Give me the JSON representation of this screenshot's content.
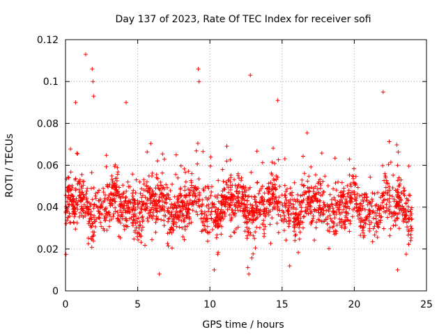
{
  "chart_data": {
    "type": "scatter",
    "title": "Day 137 of 2023, Rate Of TEC Index for receiver sofi",
    "xlabel": "GPS time / hours",
    "ylabel": "ROTI / TECUs",
    "xlim": [
      0,
      25
    ],
    "ylim": [
      0,
      0.12
    ],
    "x_ticks": [
      "0",
      "5",
      "10",
      "15",
      "20",
      "25"
    ],
    "y_ticks": [
      "0",
      "0.02",
      "0.04",
      "0.06",
      "0.08",
      "0.1",
      "0.12"
    ],
    "grid": true,
    "marker": "plus",
    "color": "#ff0000",
    "x_range_of_data": [
      0,
      24
    ],
    "bulk_range": [
      0.02,
      0.06
    ],
    "notable_points": [
      {
        "x": 1.4,
        "y": 0.113
      },
      {
        "x": 1.85,
        "y": 0.106
      },
      {
        "x": 1.9,
        "y": 0.1
      },
      {
        "x": 1.95,
        "y": 0.093
      },
      {
        "x": 9.2,
        "y": 0.106
      },
      {
        "x": 9.25,
        "y": 0.1
      },
      {
        "x": 12.8,
        "y": 0.103
      },
      {
        "x": 14.7,
        "y": 0.091
      },
      {
        "x": 22.0,
        "y": 0.095
      },
      {
        "x": 4.2,
        "y": 0.09
      },
      {
        "x": 0.7,
        "y": 0.09
      },
      {
        "x": 6.5,
        "y": 0.008
      },
      {
        "x": 12.7,
        "y": 0.008
      },
      {
        "x": 10.3,
        "y": 0.01
      },
      {
        "x": 23.0,
        "y": 0.01
      }
    ]
  }
}
